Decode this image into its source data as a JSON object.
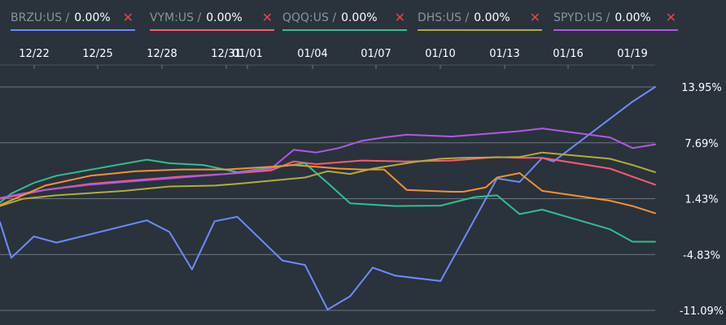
{
  "legend": [
    {
      "symbol": "BRZU:US /",
      "value": "0.00%",
      "color": "#6b8cff",
      "close_icon": "close-x-icon"
    },
    {
      "symbol": "VYM:US /",
      "value": "0.00%",
      "color": "#ff5a6e",
      "close_icon": "close-x-icon"
    },
    {
      "symbol": "QQQ:US /",
      "value": "0.00%",
      "color": "#2ec08f",
      "close_icon": "close-x-icon"
    },
    {
      "symbol": "DHS:US /",
      "value": "0.00%",
      "color": "#b0ad3a",
      "close_icon": "close-x-icon"
    },
    {
      "symbol": "SPYD:US /",
      "value": "0.00%",
      "color": "#b157e6",
      "close_icon": "close-x-icon"
    }
  ],
  "chart_data": {
    "type": "line",
    "x_tick_labels": [
      "12/22",
      "12/25",
      "12/28",
      "12/31",
      "01/01",
      "01/04",
      "01/07",
      "01/10",
      "01/13",
      "01/16",
      "01/19"
    ],
    "y_tick_labels": [
      "13.95%",
      "7.69%",
      "1.43%",
      "-4.83%",
      "-11.09%"
    ],
    "ylim": [
      -11.09,
      13.95
    ],
    "xlim": [
      0,
      29
    ],
    "grid": true,
    "legend_position": "top",
    "series": [
      {
        "name": "BRZU:US",
        "color": "#6b8cff",
        "x": [
          0,
          0.5,
          1.5,
          2.5,
          6.5,
          7.5,
          8.5,
          9.5,
          10.5,
          12.5,
          13.5,
          14.5,
          15.5,
          16.5,
          17.5,
          19.5,
          22,
          23,
          24,
          24.5,
          28,
          29
        ],
        "y": [
          -1.2,
          -5.2,
          -2.8,
          -3.5,
          -1.0,
          -2.3,
          -6.5,
          -1.1,
          -0.6,
          -5.5,
          -6.0,
          -11.0,
          -9.5,
          -6.3,
          -7.2,
          -7.8,
          3.7,
          3.3,
          6.0,
          5.6,
          12.3,
          13.95
        ]
      },
      {
        "name": "VYM:US",
        "color": "#ff5a6e",
        "x": [
          0,
          1,
          2,
          4,
          6,
          8,
          10,
          12,
          13,
          14,
          16,
          18,
          20,
          22,
          23,
          24,
          27,
          28,
          29
        ],
        "y": [
          1.4,
          1.9,
          2.4,
          3.1,
          3.5,
          3.9,
          4.2,
          4.6,
          5.6,
          5.3,
          5.7,
          5.6,
          5.7,
          6.1,
          6.0,
          6.0,
          4.8,
          3.9,
          3.0
        ]
      },
      {
        "name": "QQQ:US",
        "color": "#2ec08f",
        "x": [
          0,
          0.5,
          1.5,
          2.5,
          6.5,
          7.5,
          9,
          10.5,
          13.5,
          14.5,
          15.5,
          17.5,
          19.5,
          21,
          22,
          23,
          24,
          27,
          28,
          29
        ],
        "y": [
          1.0,
          2.0,
          3.2,
          4.0,
          5.8,
          5.4,
          5.2,
          4.4,
          5.4,
          3.2,
          0.9,
          0.6,
          0.65,
          1.6,
          1.8,
          -0.3,
          0.2,
          -2.0,
          -3.4,
          -3.4
        ]
      },
      {
        "name": "DHS:US",
        "color": "#b0ad3a",
        "x": [
          0,
          1,
          2.5,
          5.5,
          7.5,
          9.5,
          10.5,
          13.5,
          14.5,
          15.5,
          16.5,
          18.5,
          19.5,
          20.5,
          23,
          24,
          27,
          28,
          29
        ],
        "y": [
          0.6,
          1.4,
          1.8,
          2.3,
          2.8,
          2.9,
          3.1,
          3.8,
          4.5,
          4.2,
          4.8,
          5.6,
          5.9,
          6.0,
          6.1,
          6.6,
          5.9,
          5.2,
          4.4
        ]
      },
      {
        "name": "SPYD:US",
        "color": "#b157e6",
        "x": [
          0,
          1,
          2,
          4,
          6,
          8,
          10,
          12,
          13,
          14,
          15,
          16,
          17,
          18,
          20,
          22,
          23,
          24,
          27,
          28,
          29
        ],
        "y": [
          1.5,
          2.0,
          2.4,
          3.0,
          3.4,
          3.8,
          4.2,
          4.8,
          6.9,
          6.6,
          7.1,
          7.9,
          8.3,
          8.6,
          8.4,
          8.8,
          9.0,
          9.3,
          8.3,
          7.1,
          7.5
        ]
      },
      {
        "name": "Orange",
        "color": "#f5922f",
        "x": [
          0,
          1,
          2,
          4,
          6,
          8,
          10,
          12,
          13,
          14,
          15,
          16,
          17,
          18,
          20,
          20.5,
          21.5,
          22,
          23,
          24,
          27,
          28,
          29
        ],
        "y": [
          0.7,
          1.8,
          2.9,
          4.0,
          4.5,
          4.7,
          4.7,
          5.0,
          5.2,
          5.0,
          4.8,
          4.7,
          4.7,
          2.4,
          2.2,
          2.2,
          2.7,
          3.8,
          4.3,
          2.3,
          1.2,
          0.6,
          -0.2
        ]
      }
    ]
  }
}
